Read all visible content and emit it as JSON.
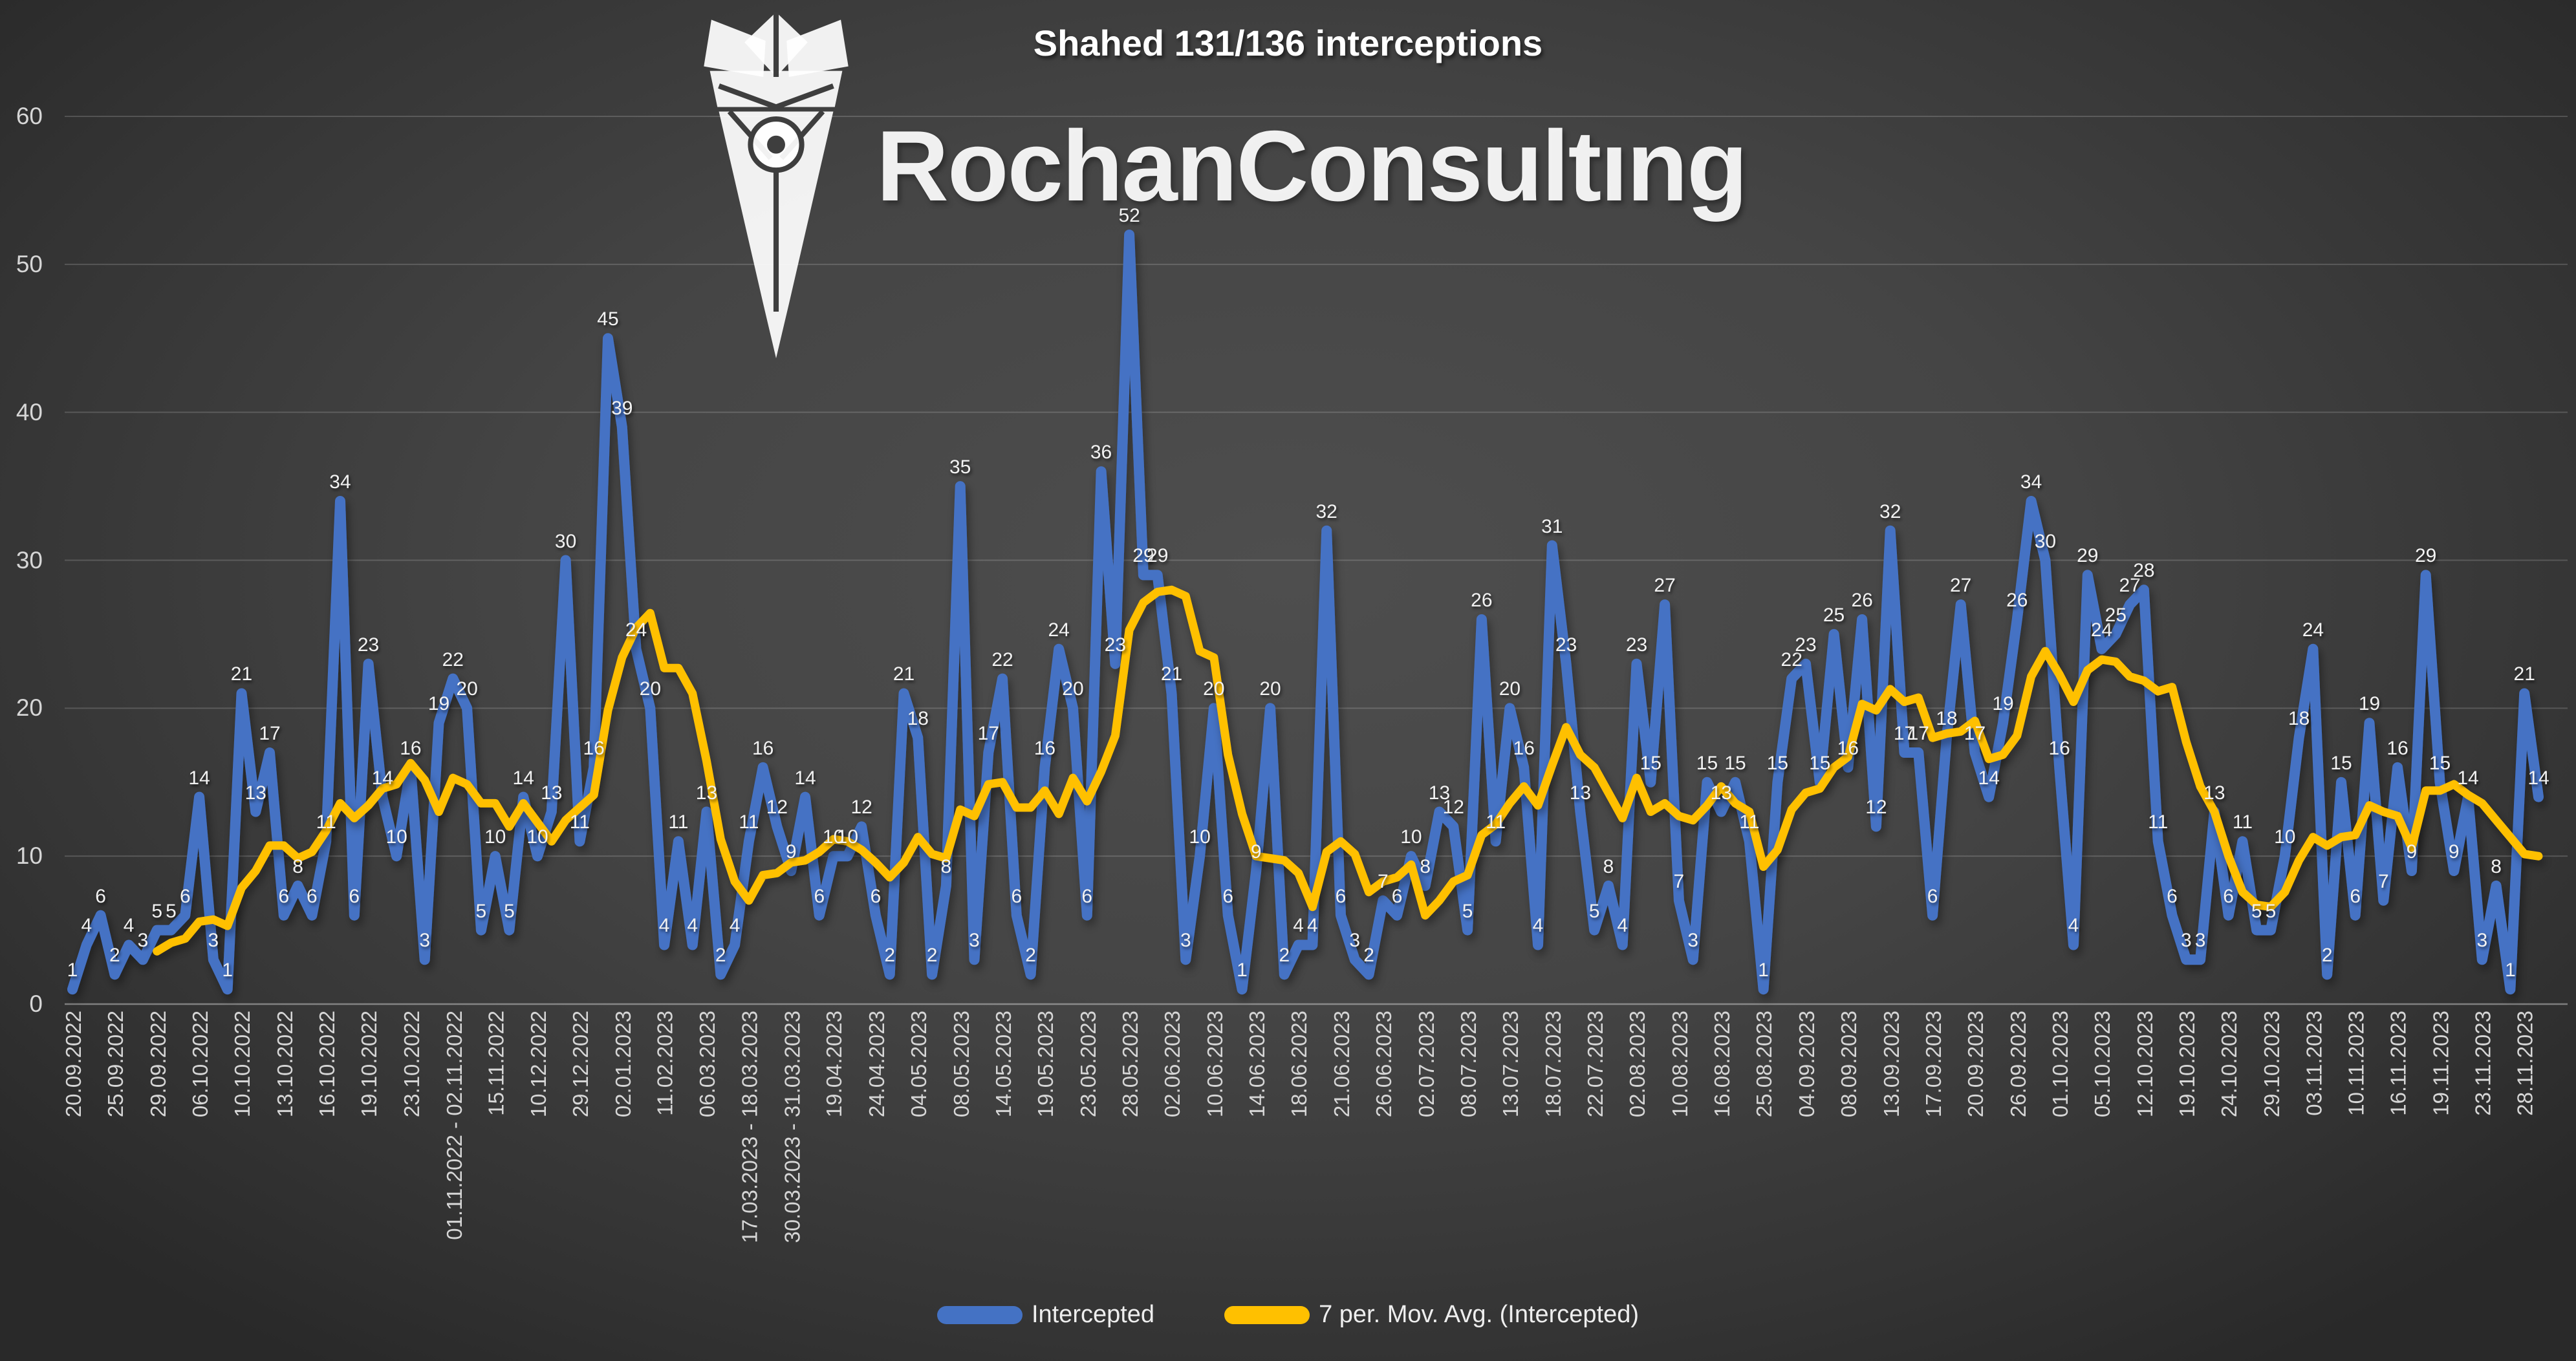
{
  "header": {
    "title": "Shahed 131/136 interceptions",
    "brand": "RochanConsultıng"
  },
  "legend": {
    "intercepted": "Intercepted",
    "moving_avg": "7 per. Mov. Avg. (Intercepted)"
  },
  "colors": {
    "intercepted": "#4472C4",
    "moving_avg": "#FFC000",
    "gridline": "rgba(255,255,255,0.17)",
    "axis_line": "rgba(255,255,255,0.38)",
    "tick_text": "#d6d6d6",
    "data_label": "#f2f2f2",
    "logo": "rgba(255,255,255,0.93)"
  },
  "chart_data": {
    "type": "line",
    "title": "Shahed 131/136 interceptions",
    "xlabel": "",
    "ylabel": "",
    "ylim": [
      0,
      60
    ],
    "y_ticks": [
      0,
      10,
      20,
      30,
      40,
      50,
      60
    ],
    "grid": "horizontal",
    "legend_position": "bottom",
    "x_tick_interval": 3,
    "x_tick_labels": [
      "20.09.2022",
      "25.09.2022",
      "29.09.2022",
      "06.10.2022",
      "10.10.2022",
      "13.10.2022",
      "16.10.2022",
      "19.10.2022",
      "23.10.2022",
      "01.11.2022 - 02.11.2022",
      "15.11.2022",
      "10.12.2022",
      "29.12.2022",
      "02.01.2023",
      "11.02.2023",
      "06.03.2023",
      "17.03.2023 - 18.03.2023",
      "30.03.2023 - 31.03.2023",
      "19.04.2023",
      "24.04.2023",
      "04.05.2023",
      "08.05.2023",
      "14.05.2023",
      "19.05.2023",
      "23.05.2023",
      "28.05.2023",
      "02.06.2023",
      "10.06.2023",
      "14.06.2023",
      "18.06.2023",
      "21.06.2023",
      "26.06.2023",
      "02.07.2023",
      "08.07.2023",
      "13.07.2023",
      "18.07.2023",
      "22.07.2023",
      "02.08.2023",
      "10.08.2023",
      "16.08.2023",
      "25.08.2023",
      "04.09.2023",
      "08.09.2023",
      "13.09.2023",
      "17.09.2023",
      "20.09.2023",
      "26.09.2023",
      "01.10.2023",
      "05.10.2023",
      "12.10.2023",
      "19.10.2023",
      "24.10.2023",
      "29.10.2023",
      "03.11.2023",
      "10.11.2023",
      "16.11.2023",
      "19.11.2023",
      "23.11.2023",
      "28.11.2023"
    ],
    "series": [
      {
        "name": "Intercepted",
        "type": "line",
        "color": "#4472C4",
        "data_labels": true,
        "values": [
          1,
          4,
          6,
          2,
          4,
          3,
          5,
          5,
          6,
          14,
          3,
          1,
          21,
          13,
          17,
          6,
          8,
          6,
          11,
          34,
          6,
          23,
          14,
          10,
          16,
          3,
          19,
          22,
          20,
          5,
          10,
          5,
          14,
          10,
          13,
          30,
          11,
          16,
          45,
          39,
          24,
          20,
          4,
          11,
          4,
          13,
          2,
          4,
          11,
          16,
          12,
          9,
          14,
          6,
          10,
          10,
          12,
          6,
          2,
          21,
          18,
          2,
          8,
          35,
          3,
          17,
          22,
          6,
          2,
          16,
          24,
          20,
          6,
          36,
          23,
          52,
          29,
          29,
          21,
          3,
          10,
          20,
          6,
          1,
          9,
          20,
          2,
          4,
          4,
          32,
          6,
          3,
          2,
          7,
          6,
          10,
          8,
          13,
          12,
          5,
          26,
          11,
          20,
          16,
          4,
          31,
          23,
          13,
          5,
          8,
          4,
          23,
          15,
          27,
          7,
          3,
          15,
          13,
          15,
          11,
          1,
          15,
          22,
          23,
          15,
          25,
          16,
          26,
          12,
          32,
          17,
          17,
          6,
          18,
          27,
          17,
          14,
          19,
          26,
          34,
          30,
          16,
          4,
          29,
          24,
          25,
          27,
          28,
          11,
          6,
          3,
          3,
          13,
          6,
          11,
          5,
          5,
          10,
          18,
          24,
          2,
          15,
          6,
          19,
          7,
          16,
          9,
          29,
          15,
          9,
          14,
          3,
          8,
          1,
          21,
          14
        ]
      },
      {
        "name": "7 per. Mov. Avg. (Intercepted)",
        "type": "moving_average",
        "window": 7,
        "derived_from": "Intercepted",
        "color": "#FFC000"
      }
    ]
  }
}
